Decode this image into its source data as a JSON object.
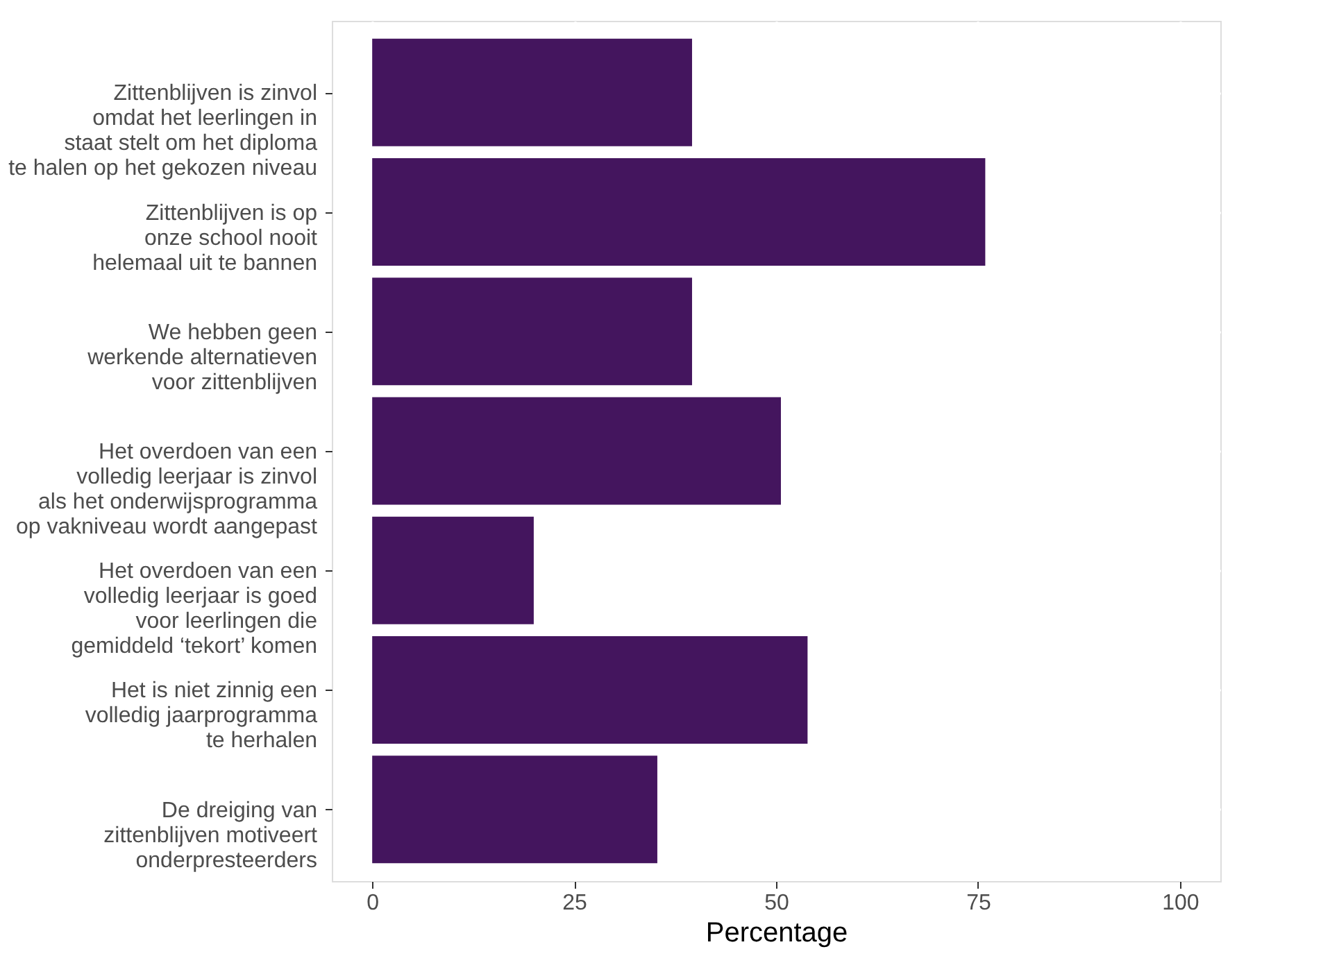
{
  "chart_data": {
    "type": "bar",
    "orientation": "horizontal",
    "xlabel": "Percentage",
    "categories": [
      "Zittenblijven is zinvol\nomdat het leerlingen in\nstaat stelt om het diploma\nte halen op het gekozen niveau",
      "Zittenblijven is op\nonze school nooit\nhelemaal uit te bannen",
      "We hebben geen\nwerkende alternatieven\nvoor zittenblijven",
      "Het overdoen van een\nvolledig leerjaar is zinvol\nals het onderwijsprogramma\nop vakniveau wordt aangepast",
      "Het overdoen van een\nvolledig leerjaar is goed\nvoor leerlingen die\ngemiddeld  ‘tekort’ komen",
      "Het is niet zinnig een\nvolledig jaarprogramma\nte herhalen",
      "De dreiging van\nzittenblijven motiveert\nonderpresteerders"
    ],
    "values": [
      39.6,
      75.9,
      39.6,
      50.6,
      20.0,
      53.9,
      35.3
    ],
    "color": "#44155e",
    "xlim": [
      -5,
      105
    ],
    "xticks": [
      0,
      25,
      50,
      75,
      100
    ],
    "grid": true
  }
}
